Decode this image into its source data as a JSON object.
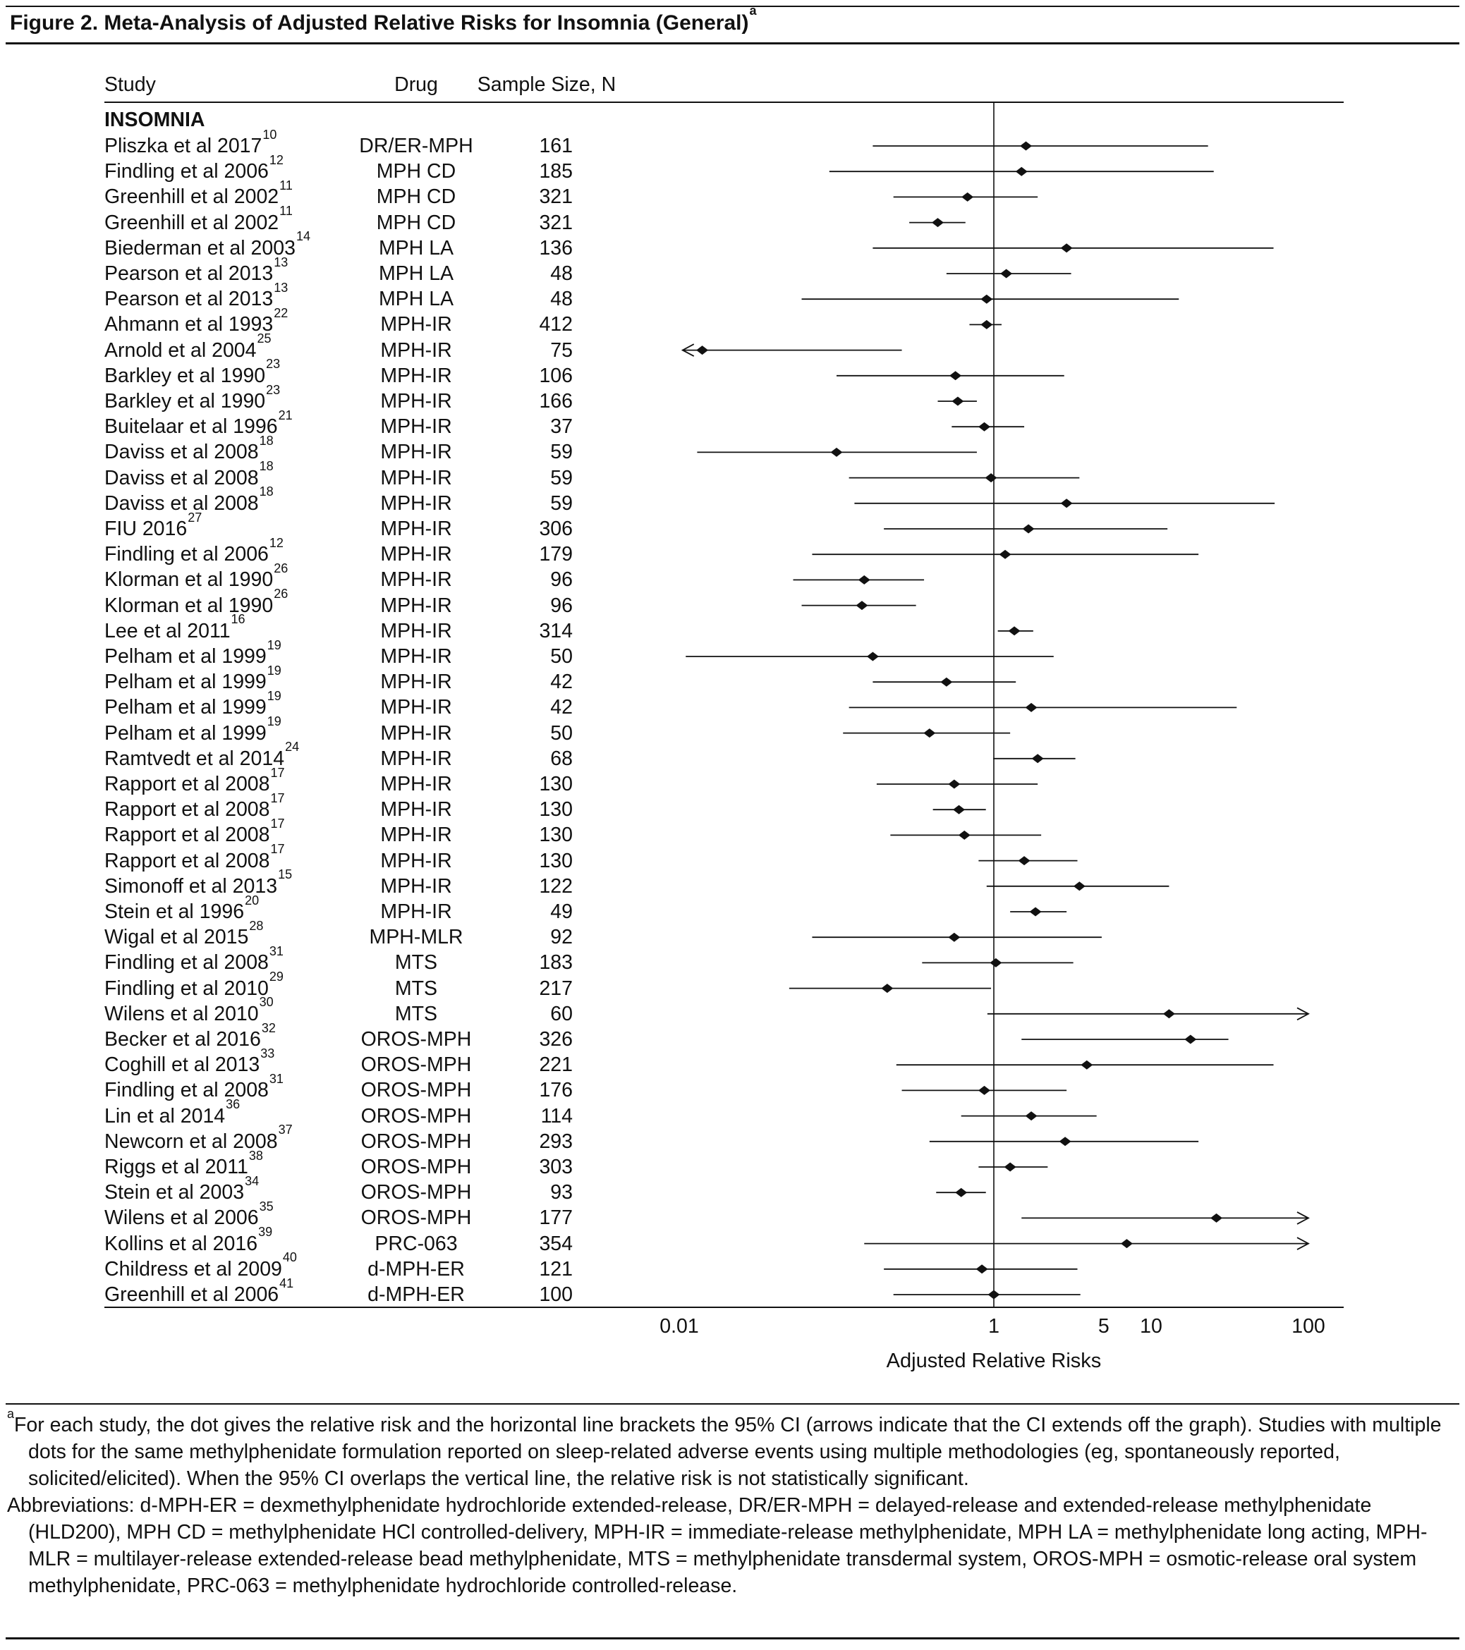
{
  "title": "Figure 2. Meta-Analysis of Adjusted Relative Risks for Insomnia (General)",
  "title_marker": "a",
  "columns": {
    "study": "Study",
    "drug": "Drug",
    "sample": "Sample Size, N"
  },
  "section": "INSOMNIA",
  "chart_data": {
    "type": "forest",
    "title": "Meta-Analysis of Adjusted Relative Risks for Insomnia (General)",
    "xlabel": "Adjusted Relative Risks",
    "x_scale": "log10",
    "xlim": [
      0.008,
      120
    ],
    "ref_line": 1,
    "grid": false,
    "ticks": [
      0.01,
      1,
      5,
      10,
      100
    ],
    "tick_labels": [
      "0.01",
      "1",
      "5",
      "10",
      "100"
    ],
    "studies": [
      {
        "study": "Pliszka et al 2017",
        "ref": "10",
        "drug": "DR/ER-MPH",
        "n": "161",
        "rr": 1.6,
        "lo": 0.17,
        "hi": 23,
        "arrow": ""
      },
      {
        "study": "Findling et al 2006",
        "ref": "12",
        "drug": "MPH CD",
        "n": "185",
        "rr": 1.5,
        "lo": 0.09,
        "hi": 25,
        "arrow": ""
      },
      {
        "study": "Greenhill et al 2002",
        "ref": "11",
        "drug": "MPH CD",
        "n": "321",
        "rr": 0.68,
        "lo": 0.23,
        "hi": 1.9,
        "arrow": ""
      },
      {
        "study": "Greenhill et al 2002",
        "ref": "11",
        "drug": "MPH CD",
        "n": "321",
        "rr": 0.44,
        "lo": 0.29,
        "hi": 0.66,
        "arrow": ""
      },
      {
        "study": "Biederman et al 2003",
        "ref": "14",
        "drug": "MPH LA",
        "n": "136",
        "rr": 2.9,
        "lo": 0.17,
        "hi": 60,
        "arrow": ""
      },
      {
        "study": "Pearson et al 2013",
        "ref": "13",
        "drug": "MPH LA",
        "n": "48",
        "rr": 1.2,
        "lo": 0.5,
        "hi": 3.1,
        "arrow": ""
      },
      {
        "study": "Pearson et al 2013",
        "ref": "13",
        "drug": "MPH LA",
        "n": "48",
        "rr": 0.9,
        "lo": 0.06,
        "hi": 15,
        "arrow": ""
      },
      {
        "study": "Ahmann et al 1993",
        "ref": "22",
        "drug": "MPH-IR",
        "n": "412",
        "rr": 0.9,
        "lo": 0.7,
        "hi": 1.12,
        "arrow": ""
      },
      {
        "study": "Arnold et al 2004",
        "ref": "25",
        "drug": "MPH-IR",
        "n": "75",
        "rr": 0.014,
        "lo": 0.0105,
        "hi": 0.26,
        "arrow": "left"
      },
      {
        "study": "Barkley et al 1990",
        "ref": "23",
        "drug": "MPH-IR",
        "n": "106",
        "rr": 0.57,
        "lo": 0.1,
        "hi": 2.8,
        "arrow": ""
      },
      {
        "study": "Barkley et al 1990",
        "ref": "23",
        "drug": "MPH-IR",
        "n": "166",
        "rr": 0.59,
        "lo": 0.44,
        "hi": 0.78,
        "arrow": ""
      },
      {
        "study": "Buitelaar et al 1996",
        "ref": "21",
        "drug": "MPH-IR",
        "n": "37",
        "rr": 0.87,
        "lo": 0.54,
        "hi": 1.56,
        "arrow": ""
      },
      {
        "study": "Daviss et al 2008",
        "ref": "18",
        "drug": "MPH-IR",
        "n": "59",
        "rr": 0.1,
        "lo": 0.013,
        "hi": 0.78,
        "arrow": ""
      },
      {
        "study": "Daviss et al 2008",
        "ref": "18",
        "drug": "MPH-IR",
        "n": "59",
        "rr": 0.96,
        "lo": 0.12,
        "hi": 3.5,
        "arrow": ""
      },
      {
        "study": "Daviss et al 2008",
        "ref": "18",
        "drug": "MPH-IR",
        "n": "59",
        "rr": 2.9,
        "lo": 0.13,
        "hi": 61,
        "arrow": ""
      },
      {
        "study": "FIU 2016",
        "ref": "27",
        "drug": "MPH-IR",
        "n": "306",
        "rr": 1.66,
        "lo": 0.2,
        "hi": 12.7,
        "arrow": ""
      },
      {
        "study": "Findling et al 2006",
        "ref": "12",
        "drug": "MPH-IR",
        "n": "179",
        "rr": 1.18,
        "lo": 0.07,
        "hi": 20,
        "arrow": ""
      },
      {
        "study": "Klorman et al 1990",
        "ref": "26",
        "drug": "MPH-IR",
        "n": "96",
        "rr": 0.15,
        "lo": 0.053,
        "hi": 0.36,
        "arrow": ""
      },
      {
        "study": "Klorman et al 1990",
        "ref": "26",
        "drug": "MPH-IR",
        "n": "96",
        "rr": 0.145,
        "lo": 0.06,
        "hi": 0.32,
        "arrow": ""
      },
      {
        "study": "Lee et al 2011",
        "ref": "16",
        "drug": "MPH-IR",
        "n": "314",
        "rr": 1.35,
        "lo": 1.06,
        "hi": 1.78,
        "arrow": ""
      },
      {
        "study": "Pelham et al 1999",
        "ref": "19",
        "drug": "MPH-IR",
        "n": "50",
        "rr": 0.17,
        "lo": 0.011,
        "hi": 2.4,
        "arrow": ""
      },
      {
        "study": "Pelham et al 1999",
        "ref": "19",
        "drug": "MPH-IR",
        "n": "42",
        "rr": 0.5,
        "lo": 0.17,
        "hi": 1.38,
        "arrow": ""
      },
      {
        "study": "Pelham et al 1999",
        "ref": "19",
        "drug": "MPH-IR",
        "n": "42",
        "rr": 1.73,
        "lo": 0.12,
        "hi": 35,
        "arrow": ""
      },
      {
        "study": "Pelham et al 1999",
        "ref": "19",
        "drug": "MPH-IR",
        "n": "50",
        "rr": 0.39,
        "lo": 0.11,
        "hi": 1.27,
        "arrow": ""
      },
      {
        "study": "Ramtvedt et al 2014",
        "ref": "24",
        "drug": "MPH-IR",
        "n": "68",
        "rr": 1.9,
        "lo": 0.99,
        "hi": 3.3,
        "arrow": ""
      },
      {
        "study": "Rapport et al 2008",
        "ref": "17",
        "drug": "MPH-IR",
        "n": "130",
        "rr": 0.56,
        "lo": 0.18,
        "hi": 1.9,
        "arrow": ""
      },
      {
        "study": "Rapport et al 2008",
        "ref": "17",
        "drug": "MPH-IR",
        "n": "130",
        "rr": 0.6,
        "lo": 0.41,
        "hi": 0.89,
        "arrow": ""
      },
      {
        "study": "Rapport et al 2008",
        "ref": "17",
        "drug": "MPH-IR",
        "n": "130",
        "rr": 0.65,
        "lo": 0.22,
        "hi": 2.0,
        "arrow": ""
      },
      {
        "study": "Rapport et al 2008",
        "ref": "17",
        "drug": "MPH-IR",
        "n": "130",
        "rr": 1.56,
        "lo": 0.8,
        "hi": 3.4,
        "arrow": ""
      },
      {
        "study": "Simonoff et al 2013",
        "ref": "15",
        "drug": "MPH-IR",
        "n": "122",
        "rr": 3.5,
        "lo": 0.9,
        "hi": 13,
        "arrow": ""
      },
      {
        "study": "Stein et al 1996",
        "ref": "20",
        "drug": "MPH-IR",
        "n": "49",
        "rr": 1.84,
        "lo": 1.27,
        "hi": 2.9,
        "arrow": ""
      },
      {
        "study": "Wigal et al 2015",
        "ref": "28",
        "drug": "MPH-MLR",
        "n": "92",
        "rr": 0.56,
        "lo": 0.07,
        "hi": 4.85,
        "arrow": ""
      },
      {
        "study": "Findling et al 2008",
        "ref": "31",
        "drug": "MTS",
        "n": "183",
        "rr": 1.03,
        "lo": 0.35,
        "hi": 3.2,
        "arrow": ""
      },
      {
        "study": "Findling et al 2010",
        "ref": "29",
        "drug": "MTS",
        "n": "217",
        "rr": 0.21,
        "lo": 0.05,
        "hi": 0.96,
        "arrow": ""
      },
      {
        "study": "Wilens et al 2010",
        "ref": "30",
        "drug": "MTS",
        "n": "60",
        "rr": 13,
        "lo": 0.91,
        "hi": 100,
        "arrow": "right"
      },
      {
        "study": "Becker et al 2016",
        "ref": "32",
        "drug": "OROS-MPH",
        "n": "326",
        "rr": 17.8,
        "lo": 1.5,
        "hi": 31,
        "arrow": ""
      },
      {
        "study": "Coghill et al 2013",
        "ref": "33",
        "drug": "OROS-MPH",
        "n": "221",
        "rr": 3.9,
        "lo": 0.24,
        "hi": 60,
        "arrow": ""
      },
      {
        "study": "Findling et al 2008",
        "ref": "31",
        "drug": "OROS-MPH",
        "n": "176",
        "rr": 0.87,
        "lo": 0.26,
        "hi": 2.9,
        "arrow": ""
      },
      {
        "study": "Lin et al 2014",
        "ref": "36",
        "drug": "OROS-MPH",
        "n": "114",
        "rr": 1.73,
        "lo": 0.62,
        "hi": 4.5,
        "arrow": ""
      },
      {
        "study": "Newcorn et al 2008",
        "ref": "37",
        "drug": "OROS-MPH",
        "n": "293",
        "rr": 2.84,
        "lo": 0.39,
        "hi": 20,
        "arrow": ""
      },
      {
        "study": "Riggs et al 2011",
        "ref": "38",
        "drug": "OROS-MPH",
        "n": "303",
        "rr": 1.27,
        "lo": 0.8,
        "hi": 2.2,
        "arrow": ""
      },
      {
        "study": "Stein et al 2003",
        "ref": "34",
        "drug": "OROS-MPH",
        "n": "93",
        "rr": 0.62,
        "lo": 0.43,
        "hi": 0.89,
        "arrow": ""
      },
      {
        "study": "Wilens et al 2006",
        "ref": "35",
        "drug": "OROS-MPH",
        "n": "177",
        "rr": 26,
        "lo": 1.5,
        "hi": 100,
        "arrow": "right"
      },
      {
        "study": "Kollins et al 2016",
        "ref": "39",
        "drug": "PRC-063",
        "n": "354",
        "rr": 7,
        "lo": 0.15,
        "hi": 100,
        "arrow": "right"
      },
      {
        "study": "Childress et al 2009",
        "ref": "40",
        "drug": "d-MPH-ER",
        "n": "121",
        "rr": 0.84,
        "lo": 0.2,
        "hi": 3.4,
        "arrow": ""
      },
      {
        "study": "Greenhill et al 2006",
        "ref": "41",
        "drug": "d-MPH-ER",
        "n": "100",
        "rr": 1.0,
        "lo": 0.23,
        "hi": 3.55,
        "arrow": ""
      }
    ]
  },
  "footnotes": {
    "marker": "a",
    "note": "For each study, the dot gives the relative risk and the horizontal line brackets the 95% CI (arrows indicate that the CI extends off the graph). Studies with multiple dots for the same methylphenidate formulation reported on sleep-related adverse events using multiple methodologies (eg, spontaneously reported, solicited/elicited). When the 95% CI overlaps the vertical line, the relative risk is not statistically significant.",
    "abbreviations": "Abbreviations: d-MPH-ER = dexmethylphenidate hydrochloride extended-release, DR/ER-MPH = delayed-release and extended-release methylphenidate (HLD200), MPH CD = methylphenidate HCl controlled-delivery, MPH-IR = immediate-release methylphenidate, MPH LA = methylphenidate long acting, MPH-MLR = multilayer-release extended-release bead methylphenidate, MTS = methylphenidate transdermal system, OROS-MPH = osmotic-release oral system methylphenidate, PRC-063 = methylphenidate hydrochloride controlled-release."
  }
}
